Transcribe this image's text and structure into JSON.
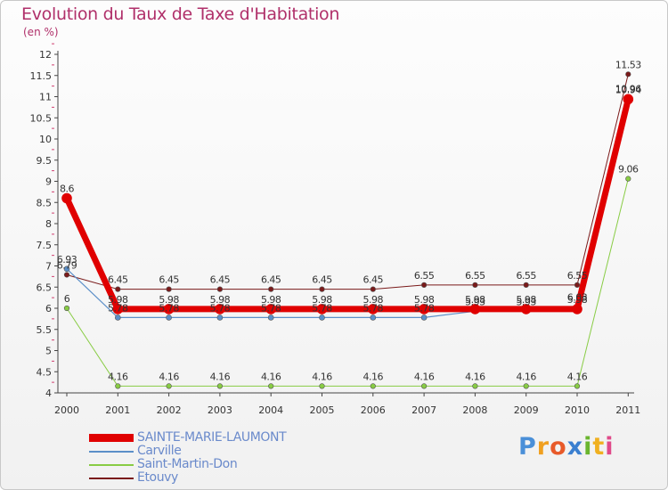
{
  "header": {
    "title": "Evolution du Taux de Taxe d'Habitation",
    "unit": "(en %)"
  },
  "logo": {
    "text": "Proxiti",
    "letters": [
      {
        "ch": "P",
        "color": "#4a8fd8"
      },
      {
        "ch": "r",
        "color": "#f0a020"
      },
      {
        "ch": "o",
        "color": "#e85a2a"
      },
      {
        "ch": "x",
        "color": "#3a7fd0"
      },
      {
        "ch": "i",
        "color": "#6ab52e"
      },
      {
        "ch": "t",
        "color": "#f0b020"
      },
      {
        "ch": "i",
        "color": "#e04a8a"
      }
    ]
  },
  "chart_data": {
    "type": "line",
    "title": "Evolution du Taux de Taxe d'Habitation",
    "ylabel": "(en %)",
    "xlabel": "",
    "ylim": [
      4,
      12
    ],
    "yticks": [
      "4",
      "4.5",
      "5",
      "5.5",
      "6",
      "6.5",
      "7",
      "7.5",
      "8",
      "8.5",
      "9",
      "9.5",
      "10",
      "10.5",
      "11",
      "11.5",
      "12"
    ],
    "categories": [
      "2000",
      "2001",
      "2002",
      "2003",
      "2004",
      "2005",
      "2006",
      "2007",
      "2008",
      "2009",
      "2010",
      "2011"
    ],
    "series": [
      {
        "name": "Etouvy",
        "color": "#7a1a1a",
        "values": [
          6.79,
          6.45,
          6.45,
          6.45,
          6.45,
          6.45,
          6.45,
          6.55,
          6.55,
          6.55,
          6.55,
          11.53
        ],
        "labels": [
          "6.79",
          "6.45",
          "6.45",
          "6.45",
          "6.45",
          "6.45",
          "6.45",
          "6.55",
          "6.55",
          "6.55",
          "6.55",
          "11.53"
        ]
      },
      {
        "name": "Saint-Martin-Don",
        "color": "#88cc44",
        "values": [
          6,
          4.16,
          4.16,
          4.16,
          4.16,
          4.16,
          4.16,
          4.16,
          4.16,
          4.16,
          4.16,
          9.06
        ],
        "labels": [
          "6",
          "4.16",
          "4.16",
          "4.16",
          "4.16",
          "4.16",
          "4.16",
          "4.16",
          "4.16",
          "4.16",
          "4.16",
          "9.06"
        ]
      },
      {
        "name": "Carville",
        "color": "#5b8fc8",
        "values": [
          6.93,
          5.78,
          5.78,
          5.78,
          5.78,
          5.78,
          5.78,
          5.78,
          5.93,
          5.93,
          6.03,
          10.96
        ],
        "labels": [
          "6.93",
          "5.78",
          "5.78",
          "5.78",
          "5.78",
          "5.78",
          "5.78",
          "5.78",
          "5.93",
          "5.93",
          "6.03",
          "10.96"
        ]
      },
      {
        "name": "SAINTE-MARIE-LAUMONT",
        "color": "#e00000",
        "values": [
          8.6,
          5.98,
          5.98,
          5.98,
          5.98,
          5.98,
          5.98,
          5.98,
          5.98,
          5.98,
          5.98,
          10.94
        ],
        "labels": [
          "8.6",
          "5.98",
          "5.98",
          "5.98",
          "5.98",
          "5.98",
          "5.98",
          "5.98",
          "5.98",
          "5.98",
          "5.98",
          "10.94"
        ]
      }
    ],
    "legend": [
      "SAINTE-MARIE-LAUMONT",
      "Carville",
      "Saint-Martin-Don",
      "Etouvy"
    ]
  }
}
